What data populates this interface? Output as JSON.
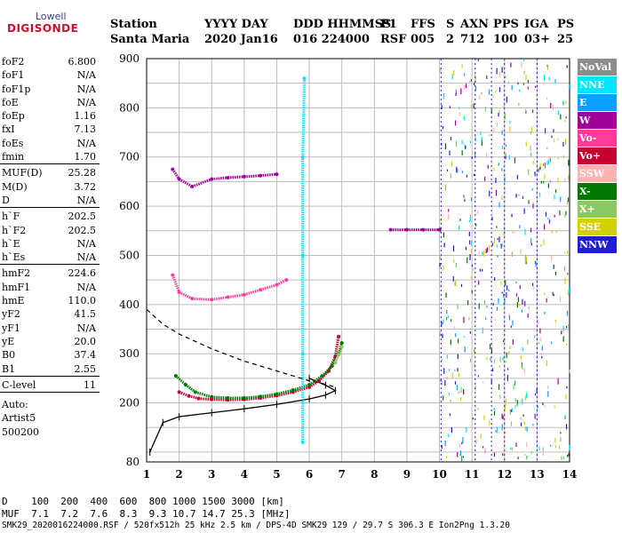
{
  "logo": {
    "top": "Lowell",
    "bottom": "DIGISONDE"
  },
  "header": {
    "labels": [
      "Station",
      "YYYY DAY",
      "DDD HHMMSS",
      "P1",
      "FFS",
      "S",
      "AXN",
      "PPS",
      "IGA",
      "PS"
    ],
    "values": [
      "Santa Maria",
      "2020 Jan16",
      "016 224000",
      "RSF",
      "005",
      "2",
      "712",
      "100",
      "03+",
      "25"
    ]
  },
  "parameters": {
    "group1": [
      {
        "k": "foF2",
        "v": "6.800"
      },
      {
        "k": "foF1",
        "v": "N/A"
      },
      {
        "k": "foF1p",
        "v": "N/A"
      },
      {
        "k": "foE",
        "v": "N/A"
      },
      {
        "k": "foEp",
        "v": "1.16"
      },
      {
        "k": "fxI",
        "v": "7.13"
      },
      {
        "k": "foEs",
        "v": "N/A"
      },
      {
        "k": "fmin",
        "v": "1.70"
      }
    ],
    "group2": [
      {
        "k": "MUF(D)",
        "v": "25.28"
      },
      {
        "k": "M(D)",
        "v": "3.72"
      },
      {
        "k": "D",
        "v": "N/A"
      }
    ],
    "group3": [
      {
        "k": "h`F",
        "v": "202.5"
      },
      {
        "k": "h`F2",
        "v": "202.5"
      },
      {
        "k": "h`E",
        "v": "N/A"
      },
      {
        "k": "h`Es",
        "v": "N/A"
      }
    ],
    "group4": [
      {
        "k": "hmF2",
        "v": "224.6"
      },
      {
        "k": "hmF1",
        "v": "N/A"
      },
      {
        "k": "hmE",
        "v": "110.0"
      },
      {
        "k": "yF2",
        "v": "41.5"
      },
      {
        "k": "yF1",
        "v": "N/A"
      },
      {
        "k": "yE",
        "v": "20.0"
      },
      {
        "k": "B0",
        "v": "37.4"
      },
      {
        "k": "B1",
        "v": "2.55"
      }
    ],
    "group5": [
      {
        "k": "C-level",
        "v": "11"
      }
    ],
    "auto": [
      "Auto:",
      "Artist5",
      "500200"
    ]
  },
  "legend": [
    {
      "label": "NoVal",
      "bg": "#8c8c8c",
      "fg": "#ffffff"
    },
    {
      "label": "NNE",
      "bg": "#00e5ff",
      "fg": "#ffffff"
    },
    {
      "label": "E",
      "bg": "#0aa0ff",
      "fg": "#ffffff"
    },
    {
      "label": "W",
      "bg": "#a0009a",
      "fg": "#ffffff"
    },
    {
      "label": "Vo-",
      "bg": "#ff3c9a",
      "fg": "#ffffff"
    },
    {
      "label": "Vo+",
      "bg": "#c80032",
      "fg": "#ffffff"
    },
    {
      "label": "SSW",
      "bg": "#ffb4b4",
      "fg": "#ffffff"
    },
    {
      "label": "X-",
      "bg": "#007800",
      "fg": "#ffffff"
    },
    {
      "label": "X+",
      "bg": "#8cc864",
      "fg": "#ffffff"
    },
    {
      "label": "SSE",
      "bg": "#d2d200",
      "fg": "#ffffff"
    },
    {
      "label": "NNW",
      "bg": "#1e1ed2",
      "fg": "#ffffff"
    }
  ],
  "bottom": {
    "line1": "D    100  200  400  600  800 1000 1500 3000 [km]",
    "line2": "MUF  7.1  7.2  7.6  8.3  9.3 10.7 14.7 25.3 [MHz]",
    "line3": "SMK29_2020016224000.RSF / 520fx512h 25 kHz 2.5 km / DPS-4D SMK29 129 / 29.7 S 306.3 E Ion2Png 1.3.20"
  },
  "chart_data": {
    "type": "scatter",
    "title": "",
    "xlabel": "",
    "ylabel": "",
    "xlim": [
      1,
      14
    ],
    "ylim": [
      80,
      900
    ],
    "x_ticks": [
      1,
      2,
      3,
      4,
      5,
      6,
      7,
      8,
      9,
      10,
      11,
      12,
      13,
      14
    ],
    "y_ticks": [
      80,
      200,
      300,
      400,
      500,
      600,
      700,
      800,
      900
    ],
    "grid": true,
    "legend_position": "right",
    "series": [
      {
        "name": "Vo+",
        "color": "#c80032",
        "points": [
          [
            2.0,
            222
          ],
          [
            2.3,
            214
          ],
          [
            2.6,
            209
          ],
          [
            3.0,
            207
          ],
          [
            3.5,
            206
          ],
          [
            4.0,
            207
          ],
          [
            4.5,
            210
          ],
          [
            5.0,
            215
          ],
          [
            5.5,
            222
          ],
          [
            6.0,
            232
          ],
          [
            6.3,
            245
          ],
          [
            6.6,
            265
          ],
          [
            6.8,
            295
          ],
          [
            6.9,
            335
          ]
        ]
      },
      {
        "name": "X-",
        "color": "#007800",
        "points": [
          [
            1.9,
            255
          ],
          [
            2.2,
            237
          ],
          [
            2.5,
            222
          ],
          [
            3.0,
            212
          ],
          [
            3.5,
            210
          ],
          [
            4.0,
            210
          ],
          [
            4.5,
            213
          ],
          [
            5.0,
            218
          ],
          [
            5.5,
            226
          ],
          [
            6.0,
            237
          ],
          [
            6.4,
            255
          ],
          [
            6.7,
            275
          ],
          [
            6.9,
            300
          ],
          [
            7.0,
            322
          ]
        ]
      },
      {
        "name": "X+",
        "color": "#8cc864",
        "points": [
          [
            6.8,
            282
          ],
          [
            6.9,
            298
          ],
          [
            7.0,
            314
          ]
        ]
      },
      {
        "name": "Vo-",
        "color": "#ff3c9a",
        "points": [
          [
            1.8,
            460
          ],
          [
            2.0,
            425
          ],
          [
            2.4,
            412
          ],
          [
            3.0,
            410
          ],
          [
            3.5,
            415
          ],
          [
            4.0,
            420
          ],
          [
            4.5,
            430
          ],
          [
            5.0,
            440
          ],
          [
            5.3,
            450
          ]
        ]
      },
      {
        "name": "W",
        "color": "#a0009a",
        "points": [
          [
            1.8,
            675
          ],
          [
            2.0,
            655
          ],
          [
            2.4,
            640
          ],
          [
            3.0,
            655
          ],
          [
            3.5,
            658
          ],
          [
            4.0,
            660
          ],
          [
            4.5,
            662
          ],
          [
            5.0,
            665
          ],
          [
            8.5,
            552
          ],
          [
            9.0,
            552
          ],
          [
            9.5,
            552
          ],
          [
            10.0,
            552
          ]
        ]
      },
      {
        "name": "NNE",
        "color": "#00e5ff",
        "points": [
          [
            5.8,
            120
          ],
          [
            5.8,
            300
          ],
          [
            5.8,
            500
          ],
          [
            5.8,
            700
          ],
          [
            5.85,
            860
          ]
        ]
      }
    ],
    "profile": {
      "name": "profile",
      "points": [
        [
          1.1,
          100
        ],
        [
          1.5,
          160
        ],
        [
          2.0,
          172
        ],
        [
          3.0,
          180
        ],
        [
          4.0,
          188
        ],
        [
          5.0,
          197
        ],
        [
          6.0,
          208
        ],
        [
          6.5,
          216
        ],
        [
          6.8,
          225
        ],
        [
          6.5,
          236
        ],
        [
          6.0,
          250
        ]
      ]
    },
    "dashed": {
      "name": "dashed",
      "points": [
        [
          1.0,
          390
        ],
        [
          1.5,
          360
        ],
        [
          2.0,
          340
        ],
        [
          3.0,
          310
        ],
        [
          4.0,
          285
        ],
        [
          5.0,
          265
        ],
        [
          6.0,
          245
        ],
        [
          6.5,
          238
        ],
        [
          6.8,
          232
        ]
      ]
    }
  }
}
